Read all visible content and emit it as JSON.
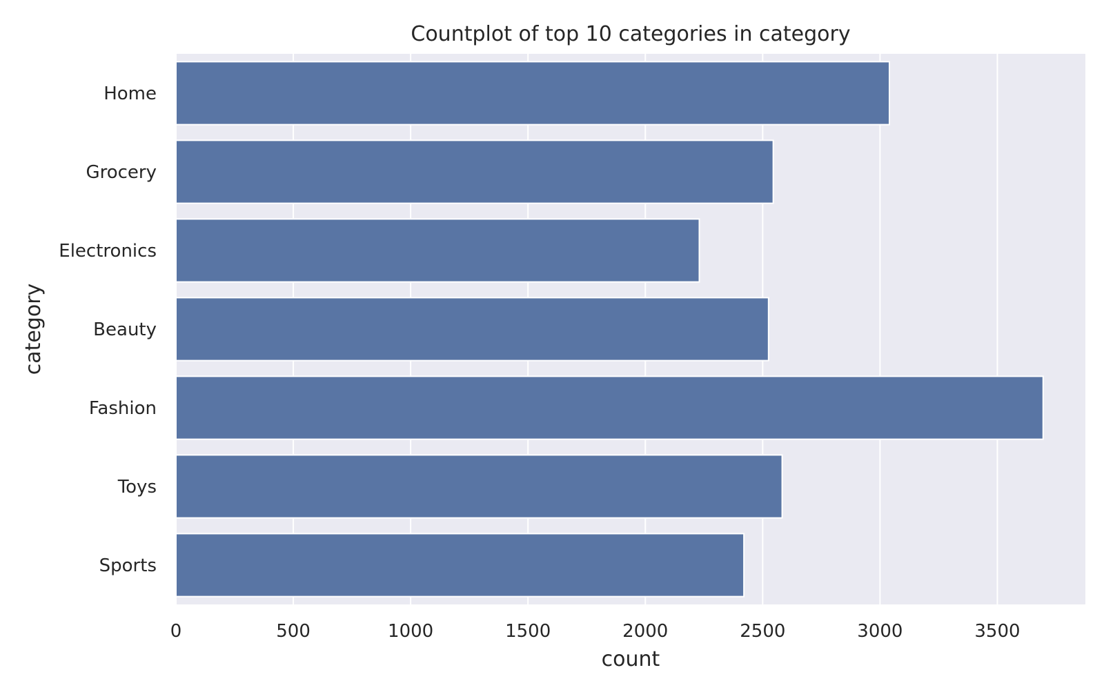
{
  "chart_data": {
    "type": "bar",
    "orientation": "horizontal",
    "title": "Countplot of top 10 categories in category",
    "xlabel": "count",
    "ylabel": "category",
    "categories": [
      "Home",
      "Grocery",
      "Electronics",
      "Beauty",
      "Fashion",
      "Toys",
      "Sports"
    ],
    "values": [
      3040,
      2545,
      2230,
      2525,
      3695,
      2583,
      2420
    ],
    "xlim": [
      0,
      3875
    ],
    "xticks": [
      0,
      500,
      1000,
      1500,
      2000,
      2500,
      3000,
      3500
    ],
    "grid": true,
    "legend": "none",
    "colors": {
      "bar": "#5975a4",
      "background": "#eaeaf2",
      "grid": "#ffffff"
    }
  }
}
